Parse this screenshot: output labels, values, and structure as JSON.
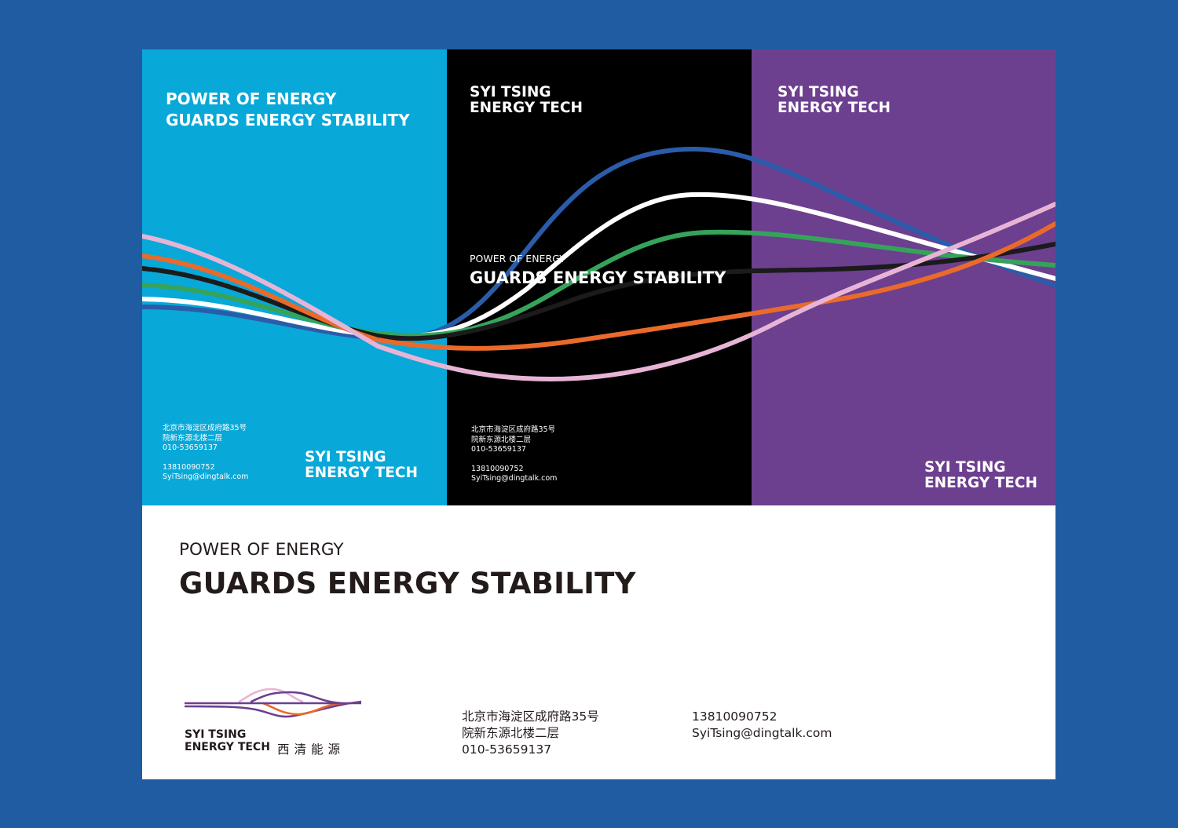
{
  "colors": {
    "background": "#1f5ca2",
    "panel_blue": "#08a8d8",
    "panel_black": "#000000",
    "panel_purple": "#6c3f8f",
    "wave_blue": "#2a5caa",
    "wave_white": "#ffffff",
    "wave_green": "#36a35a",
    "wave_black": "#1b1b1b",
    "wave_orange": "#ea6a2b",
    "wave_pink": "#e7b4d6"
  },
  "panel_blue": {
    "slogan_line1": "POWER OF ENERGY",
    "slogan_line2": "GUARDS ENERGY STABILITY",
    "address_line1": "北京市海淀区成府路35号",
    "address_line2": "院新东源北楼二层",
    "phone": "010-53659137",
    "mobile": "13810090752",
    "email": "SyiTsing@dingtalk.com",
    "brand_line1": "SYI TSING",
    "brand_line2": "ENERGY TECH"
  },
  "panel_black": {
    "brand_line1": "SYI TSING",
    "brand_line2": "ENERGY TECH",
    "slogan_small": "POWER OF ENERGY",
    "slogan_main": "GUARDS ENERGY STABILITY",
    "address_line1": "北京市海淀区成府路35号",
    "address_line2": "院新东源北楼二层",
    "phone": "010-53659137",
    "mobile": "13810090752",
    "email": "SyiTsing@dingtalk.com"
  },
  "panel_purple": {
    "brand_top_line1": "SYI TSING",
    "brand_top_line2": "ENERGY TECH",
    "brand_bottom_line1": "SYI TSING",
    "brand_bottom_line2": "ENERGY TECH"
  },
  "bottom": {
    "slogan_small": "POWER OF ENERGY",
    "slogan_main": "GUARDS ENERGY STABILITY",
    "logo_line1": "SYI TSING",
    "logo_line2": "ENERGY TECH",
    "logo_cn": "西清能源",
    "address_line1": "北京市海淀区成府路35号",
    "address_line2": "院新东源北楼二层",
    "phone": "010-53659137",
    "mobile": "13810090752",
    "email": "SyiTsing@dingtalk.com"
  }
}
